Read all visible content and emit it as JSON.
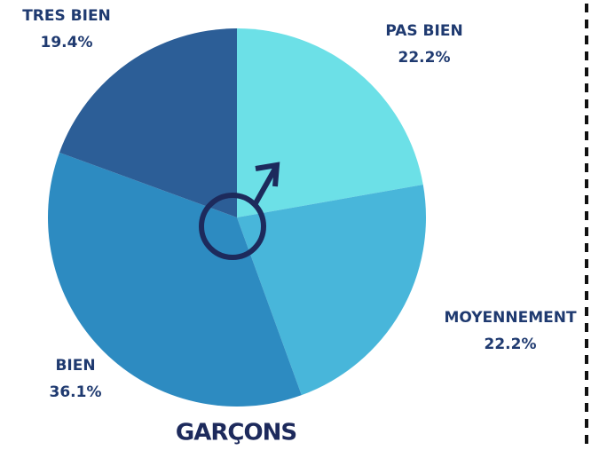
{
  "chart_data": {
    "type": "pie",
    "title": "GARÇONS",
    "categories": [
      "PAS BIEN",
      "MOYENNEMENT",
      "BIEN",
      "TRES BIEN"
    ],
    "values": [
      22.2,
      22.2,
      36.1,
      19.4
    ],
    "value_labels": [
      "22.2%",
      "22.2%",
      "36.1%",
      "19.4%"
    ],
    "colors": [
      "#6ce0e7",
      "#48b6da",
      "#2d8bc1",
      "#2c5e97"
    ]
  }
}
